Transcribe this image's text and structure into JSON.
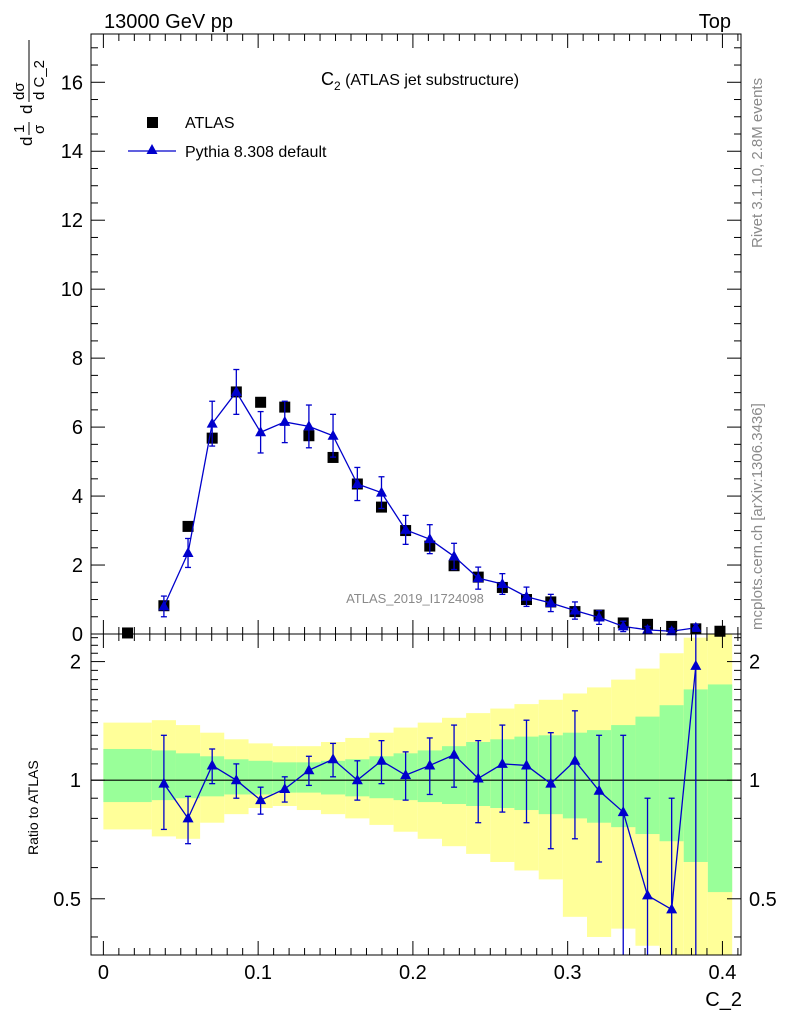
{
  "header": {
    "left": "13000 GeV pp",
    "right": "Top"
  },
  "side_labels": {
    "rivet": "Rivet 3.1.10,  2.8M events",
    "mcplots": "mcplots.cern.ch [arXiv:1306.3436]"
  },
  "main_ylabel": {
    "frac1": "1",
    "frac1_den": "σ",
    "frac2_num": "dσ",
    "frac2_den": "d C_2"
  },
  "ratio_ylabel": "Ratio to ATLAS",
  "xlabel": "C_2",
  "watermark": "ATLAS_2019_I1724098",
  "legend": {
    "atlas": "ATLAS",
    "pythia": "Pythia 8.308 default"
  },
  "colors": {
    "mc": "#0000cc",
    "band_inner": "#99ff99",
    "band_outer": "#ffff99",
    "data": "#000000"
  },
  "chart_data": [
    {
      "type": "scatter",
      "title": "C2 (ATLAS jet substructure)",
      "title_main": "C",
      "title_sub": "2",
      "title_rest": " (ATLAS jet substructure)",
      "xlabel": "C_2",
      "ylabel": "1/σ dσ/dC_2",
      "xlim": [
        -0.008,
        0.412
      ],
      "ylim": [
        0,
        17.4
      ],
      "yticks": [
        0,
        2,
        4,
        6,
        8,
        10,
        12,
        14,
        16
      ],
      "series": [
        {
          "name": "ATLAS",
          "marker": "square",
          "x": [
            0.0156,
            0.0391,
            0.0547,
            0.0703,
            0.0859,
            0.1016,
            0.1172,
            0.1328,
            0.1484,
            0.1641,
            0.1797,
            0.1953,
            0.2109,
            0.2266,
            0.2422,
            0.2578,
            0.2734,
            0.2891,
            0.3047,
            0.3203,
            0.3359,
            0.3516,
            0.3672,
            0.3828,
            0.3984
          ],
          "y": [
            0.03,
            0.82,
            3.12,
            5.68,
            7.02,
            6.72,
            6.58,
            5.75,
            5.12,
            4.35,
            3.68,
            3.0,
            2.55,
            1.98,
            1.65,
            1.35,
            1.0,
            0.93,
            0.65,
            0.55,
            0.32,
            0.28,
            0.22,
            0.15,
            0.08
          ]
        },
        {
          "name": "Pythia 8.308 default",
          "marker": "triangle",
          "x": [
            0.0391,
            0.0547,
            0.0703,
            0.0859,
            0.1016,
            0.1172,
            0.1328,
            0.1484,
            0.1641,
            0.1797,
            0.1953,
            0.2109,
            0.2266,
            0.2422,
            0.2578,
            0.2734,
            0.2891,
            0.3047,
            0.3203,
            0.3359,
            0.3516,
            0.3672,
            0.3828
          ],
          "y": [
            0.8,
            2.35,
            6.1,
            7.02,
            5.85,
            6.15,
            6.02,
            5.75,
            4.35,
            4.1,
            3.02,
            2.75,
            2.25,
            1.62,
            1.45,
            1.08,
            0.9,
            0.68,
            0.48,
            0.22,
            0.12,
            0.08,
            0.18
          ],
          "yerr": [
            0.3,
            0.42,
            0.65,
            0.65,
            0.6,
            0.6,
            0.62,
            0.62,
            0.48,
            0.46,
            0.42,
            0.42,
            0.38,
            0.32,
            0.3,
            0.28,
            0.25,
            0.25,
            0.2,
            0.15,
            0.1,
            0.08,
            0.1
          ]
        }
      ]
    },
    {
      "type": "scatter",
      "title": "Ratio to ATLAS",
      "xlabel": "C_2",
      "ylabel": "Ratio to ATLAS",
      "xlim": [
        -0.008,
        0.412
      ],
      "ylim": [
        0.36,
        2.35
      ],
      "yscale": "log",
      "yticks": [
        0.5,
        1,
        2
      ],
      "xticks": [
        0,
        0.1,
        0.2,
        0.3,
        0.4
      ],
      "bands": {
        "edges": [
          0,
          0.0313,
          0.0469,
          0.0625,
          0.0781,
          0.0938,
          0.1094,
          0.125,
          0.1406,
          0.1563,
          0.1719,
          0.1875,
          0.2031,
          0.2188,
          0.2344,
          0.25,
          0.2656,
          0.2813,
          0.2969,
          0.3125,
          0.3281,
          0.3438,
          0.3594,
          0.375,
          0.3906,
          0.4063
        ],
        "inner_lo": [
          0.88,
          0.89,
          0.9,
          0.91,
          0.92,
          0.92,
          0.93,
          0.93,
          0.92,
          0.91,
          0.9,
          0.89,
          0.88,
          0.87,
          0.86,
          0.85,
          0.84,
          0.82,
          0.8,
          0.78,
          0.76,
          0.73,
          0.7,
          0.62,
          0.52
        ],
        "inner_hi": [
          1.2,
          1.19,
          1.17,
          1.15,
          1.13,
          1.12,
          1.11,
          1.11,
          1.12,
          1.13,
          1.15,
          1.17,
          1.19,
          1.22,
          1.25,
          1.27,
          1.29,
          1.3,
          1.32,
          1.34,
          1.38,
          1.45,
          1.55,
          1.7,
          1.75
        ],
        "outer_lo": [
          0.75,
          0.72,
          0.71,
          0.78,
          0.82,
          0.85,
          0.86,
          0.84,
          0.82,
          0.8,
          0.77,
          0.74,
          0.71,
          0.68,
          0.65,
          0.62,
          0.59,
          0.56,
          0.45,
          0.4,
          0.42,
          0.38,
          0.36,
          0.36,
          0.36
        ],
        "outer_hi": [
          1.4,
          1.42,
          1.38,
          1.32,
          1.27,
          1.24,
          1.22,
          1.22,
          1.25,
          1.28,
          1.32,
          1.36,
          1.4,
          1.44,
          1.48,
          1.52,
          1.56,
          1.6,
          1.66,
          1.72,
          1.8,
          1.92,
          2.1,
          2.3,
          2.35
        ]
      },
      "series": [
        {
          "name": "Pythia 8.308 default / ATLAS",
          "x": [
            0.0391,
            0.0547,
            0.0703,
            0.0859,
            0.1016,
            0.1172,
            0.1328,
            0.1484,
            0.1641,
            0.1797,
            0.1953,
            0.2109,
            0.2266,
            0.2422,
            0.2578,
            0.2734,
            0.2891,
            0.3047,
            0.3203,
            0.3359,
            0.3516,
            0.3672,
            0.3828
          ],
          "y": [
            0.98,
            0.8,
            1.09,
            1.0,
            0.89,
            0.95,
            1.06,
            1.13,
            1.0,
            1.12,
            1.03,
            1.09,
            1.16,
            1.01,
            1.1,
            1.09,
            0.98,
            1.12,
            0.94,
            0.83,
            0.51,
            0.47,
            1.95
          ],
          "ylo": [
            0.75,
            0.69,
            0.98,
            0.9,
            0.82,
            0.88,
            0.97,
            1.02,
            0.89,
            0.98,
            0.89,
            0.92,
            0.96,
            0.78,
            0.83,
            0.78,
            0.67,
            0.71,
            0.62,
            0.36,
            0.36,
            0.36,
            0.36
          ],
          "yhi": [
            1.3,
            0.91,
            1.2,
            1.1,
            0.96,
            1.02,
            1.15,
            1.24,
            1.12,
            1.26,
            1.18,
            1.28,
            1.38,
            1.26,
            1.38,
            1.42,
            1.32,
            1.5,
            1.3,
            1.3,
            0.9,
            0.9,
            2.35
          ]
        }
      ]
    }
  ]
}
